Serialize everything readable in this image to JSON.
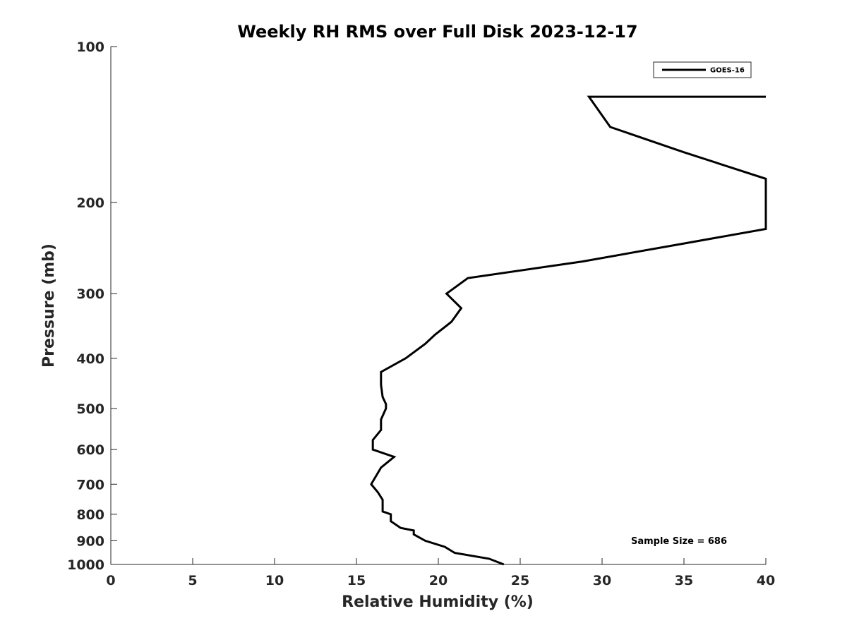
{
  "chart_data": {
    "type": "line",
    "title": "Weekly RH RMS over Full Disk 2023-12-17",
    "xlabel": "Relative Humidity (%)",
    "ylabel": "Pressure (mb)",
    "xlim": [
      0,
      40
    ],
    "ylim": [
      100,
      1000
    ],
    "y_scale": "log",
    "y_reversed": true,
    "xticks": [
      0,
      5,
      10,
      15,
      20,
      25,
      30,
      35,
      40
    ],
    "yticks": [
      100,
      200,
      300,
      400,
      500,
      600,
      700,
      800,
      900,
      1000
    ],
    "grid": false,
    "legend_position": "top-right",
    "series": [
      {
        "name": "GOES-16",
        "color": "#000000",
        "points": [
          [
            24.0,
            1000
          ],
          [
            23.1,
            975
          ],
          [
            21.0,
            950
          ],
          [
            20.4,
            925
          ],
          [
            19.2,
            900
          ],
          [
            18.5,
            875
          ],
          [
            18.5,
            860
          ],
          [
            17.7,
            850
          ],
          [
            17.1,
            825
          ],
          [
            17.1,
            800
          ],
          [
            16.6,
            790
          ],
          [
            16.6,
            775
          ],
          [
            16.6,
            750
          ],
          [
            16.3,
            725
          ],
          [
            15.9,
            700
          ],
          [
            16.5,
            650
          ],
          [
            17.3,
            620
          ],
          [
            16.0,
            600
          ],
          [
            16.0,
            575
          ],
          [
            16.5,
            550
          ],
          [
            16.5,
            525
          ],
          [
            16.8,
            500
          ],
          [
            16.8,
            490
          ],
          [
            16.6,
            475
          ],
          [
            16.5,
            450
          ],
          [
            16.5,
            425
          ],
          [
            18.0,
            400
          ],
          [
            19.2,
            375
          ],
          [
            19.8,
            360
          ],
          [
            20.8,
            340
          ],
          [
            21.4,
            320
          ],
          [
            20.5,
            300
          ],
          [
            21.8,
            280
          ],
          [
            28.8,
            260
          ],
          [
            35.0,
            240
          ],
          [
            40.0,
            225
          ],
          [
            40.0,
            180
          ],
          [
            35.0,
            160
          ],
          [
            30.5,
            143
          ],
          [
            29.2,
            125
          ],
          [
            40.0,
            125
          ]
        ]
      }
    ],
    "annotations": [
      {
        "text": "Sample Size = 686"
      }
    ]
  }
}
